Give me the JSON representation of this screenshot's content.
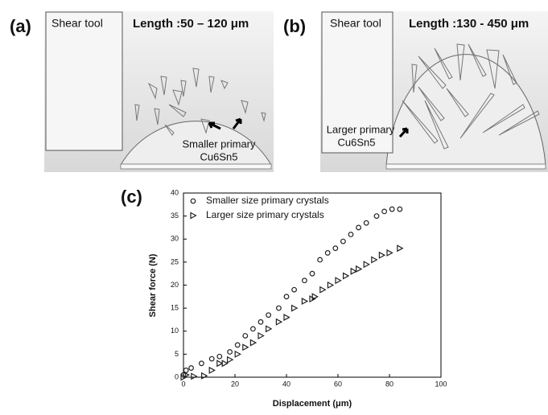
{
  "panels": [
    {
      "label": "(a)",
      "tool": "Shear tool",
      "length": "Length :50 – 120 μm",
      "note": "Smaller primary",
      "formula": "Cu6Sn5"
    },
    {
      "label": "(b)",
      "tool": "Shear tool",
      "length": "Length :130 - 450 μm",
      "note": "Larger primary",
      "formula": "Cu6Sn5"
    }
  ],
  "chart_data": {
    "type": "scatter",
    "panel_label": "(c)",
    "x_label": "Displacement (μm)",
    "y_label": "Shear force (N)",
    "xlim": [
      0,
      100
    ],
    "xticks": [
      0,
      20,
      40,
      60,
      80,
      100
    ],
    "ylim": [
      0,
      40
    ],
    "yticks": [
      0,
      5,
      10,
      15,
      20,
      25,
      30,
      35,
      40
    ],
    "series": [
      {
        "name": "Smaller size primary crystals",
        "marker": "circle",
        "color": "#222222",
        "x": [
          0,
          1,
          3,
          7,
          11,
          14,
          18,
          21,
          24,
          27,
          30,
          33,
          37,
          40,
          43,
          47,
          50,
          53,
          56,
          59,
          62,
          65,
          68,
          71,
          75,
          78,
          81,
          84
        ],
        "values": [
          0.5,
          1.5,
          2,
          3,
          4,
          4.5,
          5.5,
          7,
          9,
          10.5,
          12,
          13.5,
          15,
          17.5,
          19,
          21,
          22.5,
          25.5,
          27,
          28,
          29.5,
          31,
          32.5,
          33.5,
          35,
          36,
          36.5,
          36.5
        ]
      },
      {
        "name": "Larger size primary crystals",
        "marker": "triangle",
        "color": "#222222",
        "x": [
          0,
          1,
          4,
          8,
          11,
          14,
          16,
          18,
          21,
          24,
          27,
          30,
          33,
          37,
          40,
          43,
          47,
          50,
          51,
          54,
          57,
          60,
          63,
          66,
          68,
          71,
          74,
          77,
          80,
          84
        ],
        "values": [
          0,
          0.5,
          0.2,
          0.3,
          1.5,
          3,
          3,
          3.8,
          5,
          6.5,
          7.5,
          9,
          10.5,
          12,
          13,
          15,
          16.5,
          17,
          17.5,
          19,
          20,
          21,
          22,
          23,
          23.5,
          24.5,
          25.5,
          26.5,
          27,
          28
        ]
      }
    ]
  }
}
